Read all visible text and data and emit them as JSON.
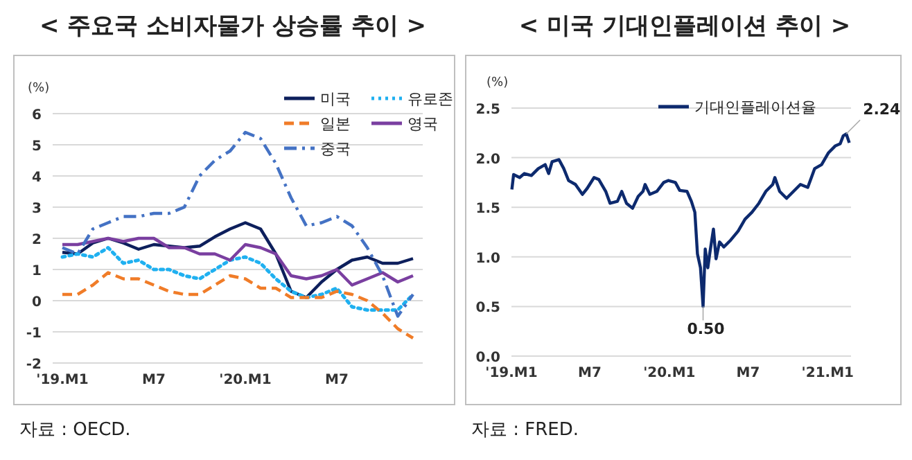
{
  "chart_data": [
    {
      "type": "line",
      "title": "< 주요국 소비자물가 상승률 추이 >",
      "ylabel": "(%)",
      "categories": [
        "'19.M1",
        null,
        null,
        null,
        null,
        null,
        "M7",
        null,
        null,
        null,
        null,
        null,
        "'20.M1",
        null,
        null,
        null,
        null,
        null,
        "M7",
        null,
        null,
        null,
        null,
        null
      ],
      "ylim": [
        -2,
        6
      ],
      "yticks": [
        -2,
        -1,
        0,
        1,
        2,
        3,
        4,
        5,
        6
      ],
      "grid": "y",
      "legend": "top right",
      "annotations": [
        "자료 : OECD."
      ],
      "series": [
        {
          "name": "미국",
          "color": "#0d1f5c",
          "line_style": "solid",
          "values": [
            1.55,
            1.5,
            1.85,
            2.0,
            1.85,
            1.65,
            1.8,
            1.75,
            1.7,
            1.75,
            2.05,
            2.3,
            2.5,
            2.3,
            1.5,
            0.3,
            0.1,
            0.6,
            1.0,
            1.3,
            1.4,
            1.2,
            1.2,
            1.35
          ]
        },
        {
          "name": "유로존",
          "color": "#1fb0f0",
          "line_style": "dotted",
          "values": [
            1.4,
            1.5,
            1.4,
            1.7,
            1.2,
            1.3,
            1.0,
            1.0,
            0.8,
            0.7,
            1.0,
            1.3,
            1.4,
            1.2,
            0.7,
            0.3,
            0.1,
            0.2,
            0.4,
            -0.2,
            -0.3,
            -0.3,
            -0.3,
            0.2
          ]
        },
        {
          "name": "일본",
          "color": "#f07c28",
          "line_style": "dashed",
          "values": [
            0.2,
            0.2,
            0.5,
            0.9,
            0.7,
            0.7,
            0.5,
            0.3,
            0.2,
            0.2,
            0.5,
            0.8,
            0.7,
            0.4,
            0.4,
            0.1,
            0.1,
            0.1,
            0.3,
            0.2,
            0.0,
            -0.4,
            -0.9,
            -1.2
          ]
        },
        {
          "name": "영국",
          "color": "#7a3fa0",
          "line_style": "solid",
          "values": [
            1.8,
            1.8,
            1.9,
            2.0,
            1.9,
            2.0,
            2.0,
            1.7,
            1.7,
            1.5,
            1.5,
            1.3,
            1.8,
            1.7,
            1.5,
            0.8,
            0.7,
            0.8,
            1.0,
            0.5,
            0.7,
            0.9,
            0.6,
            0.8
          ]
        },
        {
          "name": "중국",
          "color": "#4472c4",
          "line_style": "dashdot",
          "values": [
            1.7,
            1.5,
            2.3,
            2.5,
            2.7,
            2.7,
            2.8,
            2.8,
            3.0,
            4.0,
            4.5,
            4.8,
            5.4,
            5.2,
            4.4,
            3.3,
            2.4,
            2.5,
            2.7,
            2.4,
            1.7,
            0.8,
            -0.5,
            0.2
          ]
        }
      ]
    },
    {
      "type": "line",
      "title": "< 미국 기대인플레이션 추이 >",
      "ylabel": "(%)",
      "xlim": [
        "2019-01-01",
        "2021-02-24"
      ],
      "xticks": [
        {
          "value": "2019-01-01",
          "label": "'19.M1"
        },
        {
          "value": "2019-07-01",
          "label": "M7"
        },
        {
          "value": "2020-01-01",
          "label": "'20.M1"
        },
        {
          "value": "2020-07-01",
          "label": "M7"
        },
        {
          "value": "2021-01-01",
          "label": "'21.M1"
        }
      ],
      "ylim": [
        0,
        2.5
      ],
      "yticks": [
        {
          "value": 0,
          "label": "0.0"
        },
        0.5,
        {
          "value": 1,
          "label": "1.0"
        },
        1.5,
        {
          "value": 2,
          "label": "2.0"
        },
        2.5
      ],
      "grid": "y",
      "legend": "top",
      "annotations": [
        {
          "text": "2.24",
          "x": "2021-02-13",
          "y": 2.24
        },
        {
          "text": "0.50",
          "x": "2020-03-19",
          "y": 0.5
        },
        "자료 : FRED."
      ],
      "x": [
        "2019-01-02",
        "2019-01-06",
        "2019-01-20",
        "2019-01-31",
        "2019-02-16",
        "2019-03-04",
        "2019-03-20",
        "2019-03-28",
        "2019-04-05",
        "2019-04-21",
        "2019-05-02",
        "2019-05-13",
        "2019-05-29",
        "2019-06-14",
        "2019-06-25",
        "2019-07-11",
        "2019-07-22",
        "2019-08-07",
        "2019-08-17",
        "2019-09-03",
        "2019-09-13",
        "2019-09-24",
        "2019-10-08",
        "2019-10-21",
        "2019-11-01",
        "2019-11-06",
        "2019-11-17",
        "2019-12-03",
        "2019-12-19",
        "2019-12-30",
        "2020-01-15",
        "2020-01-25",
        "2020-02-11",
        "2020-02-21",
        "2020-02-29",
        "2020-03-06",
        "2020-03-13",
        "2020-03-19",
        "2020-03-24",
        "2020-03-30",
        "2020-04-04",
        "2020-04-12",
        "2020-04-18",
        "2020-04-26",
        "2020-05-06",
        "2020-05-22",
        "2020-06-08",
        "2020-06-24",
        "2020-07-10",
        "2020-07-26",
        "2020-08-11",
        "2020-08-27",
        "2020-09-01",
        "2020-09-12",
        "2020-09-28",
        "2020-10-14",
        "2020-10-30",
        "2020-11-16",
        "2020-12-02",
        "2020-12-18",
        "2021-01-03",
        "2021-01-19",
        "2021-01-30",
        "2021-02-06",
        "2021-02-13",
        "2021-02-20"
      ],
      "series": [
        {
          "name": "기대인플레이션율",
          "color": "#0d2a6e",
          "line_style": "solid",
          "values": [
            1.68,
            1.83,
            1.8,
            1.84,
            1.82,
            1.89,
            1.93,
            1.84,
            1.96,
            1.98,
            1.89,
            1.77,
            1.73,
            1.63,
            1.69,
            1.8,
            1.78,
            1.66,
            1.54,
            1.56,
            1.66,
            1.54,
            1.49,
            1.61,
            1.66,
            1.73,
            1.63,
            1.66,
            1.75,
            1.77,
            1.75,
            1.67,
            1.66,
            1.56,
            1.45,
            1.03,
            0.89,
            0.5,
            1.08,
            0.89,
            1.05,
            1.28,
            0.98,
            1.15,
            1.1,
            1.17,
            1.26,
            1.38,
            1.45,
            1.54,
            1.66,
            1.73,
            1.8,
            1.66,
            1.59,
            1.66,
            1.73,
            1.7,
            1.89,
            1.93,
            2.05,
            2.12,
            2.14,
            2.22,
            2.24,
            2.15
          ]
        }
      ]
    }
  ]
}
